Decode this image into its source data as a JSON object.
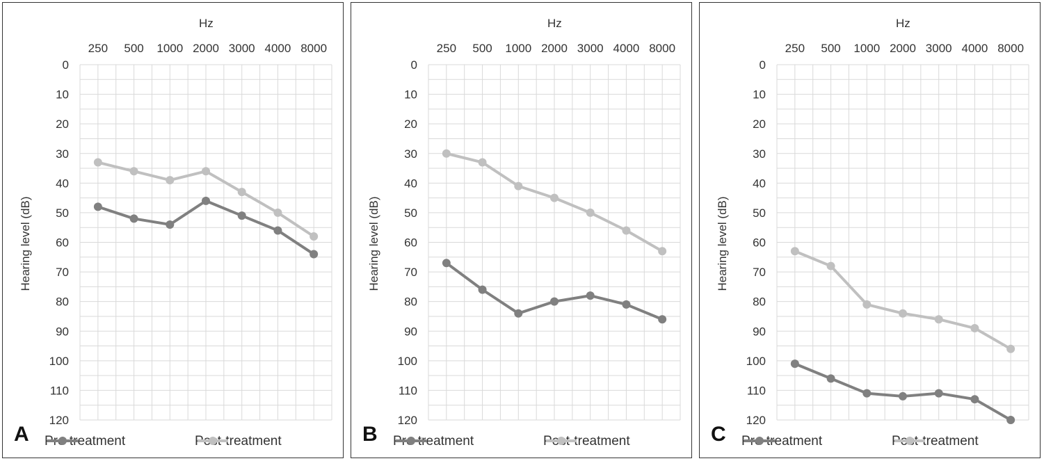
{
  "chart_data": [
    {
      "type": "line",
      "panel_label": "A",
      "x_unit": "Hz",
      "ylabel": "Hearing level (dB)",
      "categories": [
        "250",
        "500",
        "1000",
        "2000",
        "3000",
        "4000",
        "8000"
      ],
      "y_ticks": [
        "0",
        "10",
        "20",
        "30",
        "40",
        "50",
        "60",
        "70",
        "80",
        "90",
        "100",
        "110",
        "120"
      ],
      "ylim": [
        0,
        120
      ],
      "y_inverted": true,
      "x_axis_position": "top",
      "grid": true,
      "legend_position": "bottom",
      "series": [
        {
          "name": "Pre-treatment",
          "color": "#808080",
          "values": [
            48,
            52,
            54,
            46,
            51,
            56,
            64
          ]
        },
        {
          "name": "Post-treatment",
          "color": "#c0c0c0",
          "values": [
            33,
            36,
            39,
            36,
            43,
            50,
            58
          ]
        }
      ]
    },
    {
      "type": "line",
      "panel_label": "B",
      "x_unit": "Hz",
      "ylabel": "Hearing level (dB)",
      "categories": [
        "250",
        "500",
        "1000",
        "2000",
        "3000",
        "4000",
        "8000"
      ],
      "y_ticks": [
        "0",
        "10",
        "20",
        "30",
        "40",
        "50",
        "60",
        "70",
        "80",
        "90",
        "100",
        "110",
        "120"
      ],
      "ylim": [
        0,
        120
      ],
      "y_inverted": true,
      "x_axis_position": "top",
      "grid": true,
      "legend_position": "bottom",
      "series": [
        {
          "name": "Pre-treatment",
          "color": "#808080",
          "values": [
            67,
            76,
            84,
            80,
            78,
            81,
            86
          ]
        },
        {
          "name": "Post-treatment",
          "color": "#c0c0c0",
          "values": [
            30,
            33,
            41,
            45,
            50,
            56,
            63
          ]
        }
      ]
    },
    {
      "type": "line",
      "panel_label": "C",
      "x_unit": "Hz",
      "ylabel": "Hearing level (dB)",
      "categories": [
        "250",
        "500",
        "1000",
        "2000",
        "3000",
        "4000",
        "8000"
      ],
      "y_ticks": [
        "0",
        "10",
        "20",
        "30",
        "40",
        "50",
        "60",
        "70",
        "80",
        "90",
        "100",
        "110",
        "120"
      ],
      "ylim": [
        0,
        120
      ],
      "y_inverted": true,
      "x_axis_position": "top",
      "grid": true,
      "legend_position": "bottom",
      "series": [
        {
          "name": "Pre-treatment",
          "color": "#808080",
          "values": [
            101,
            106,
            111,
            112,
            111,
            113,
            120
          ]
        },
        {
          "name": "Post-treatment",
          "color": "#c0c0c0",
          "values": [
            63,
            68,
            81,
            84,
            86,
            89,
            96
          ]
        }
      ]
    }
  ]
}
